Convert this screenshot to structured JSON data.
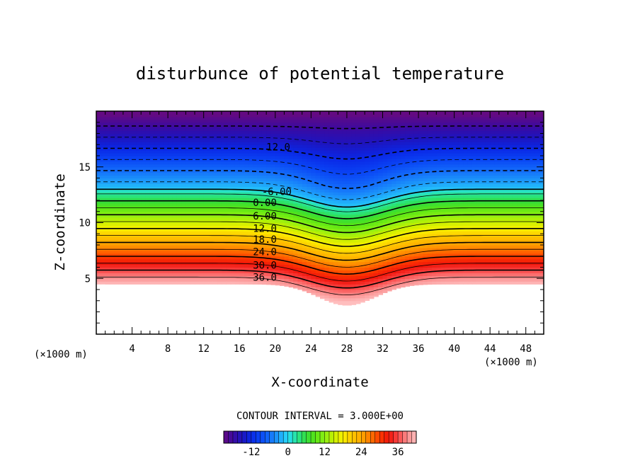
{
  "chart_data": {
    "type": "heatmap",
    "title": "disturbunce of potential temperature",
    "xlabel": "X-coordinate",
    "ylabel": "Z-coordinate",
    "x_unit": "(×1000 m)",
    "x_unit_right": "(×1000 m)",
    "xlim": [
      0,
      50
    ],
    "ylim": [
      0,
      20
    ],
    "x_ticks": [
      4,
      8,
      12,
      16,
      20,
      24,
      28,
      32,
      36,
      40,
      44,
      48
    ],
    "y_ticks": [
      5,
      10,
      15
    ],
    "contour_interval_label": "CONTOUR INTERVAL = 3.000E+00",
    "contour_labels": [
      {
        "text": "12.0",
        "x": 19,
        "z": 16.8
      },
      {
        "text": "-6.00",
        "x": 18.5,
        "z": 12.8
      },
      {
        "text": "0.00",
        "x": 17.5,
        "z": 11.8
      },
      {
        "text": "6.00",
        "x": 17.5,
        "z": 10.6
      },
      {
        "text": "12.0",
        "x": 17.5,
        "z": 9.5
      },
      {
        "text": "18.0",
        "x": 17.5,
        "z": 8.5
      },
      {
        "text": "24.0",
        "x": 17.5,
        "z": 7.4
      },
      {
        "text": "30.0",
        "x": 17.5,
        "z": 6.2
      },
      {
        "text": "36.0",
        "x": 17.5,
        "z": 5.1
      }
    ],
    "field": {
      "value_range": [
        -21,
        42
      ],
      "bottom_boundary_z": 4.5,
      "dip_center_x": 28,
      "dip_depth_z": 2.6,
      "bump_center_x": 28,
      "bump_amplitude_z": 1.6
    },
    "colorbar": {
      "range": [
        -21,
        42
      ],
      "tick_labels": [
        "-12",
        "0",
        "12",
        "24",
        "36"
      ],
      "tick_values": [
        -12,
        0,
        12,
        24,
        36
      ]
    }
  }
}
